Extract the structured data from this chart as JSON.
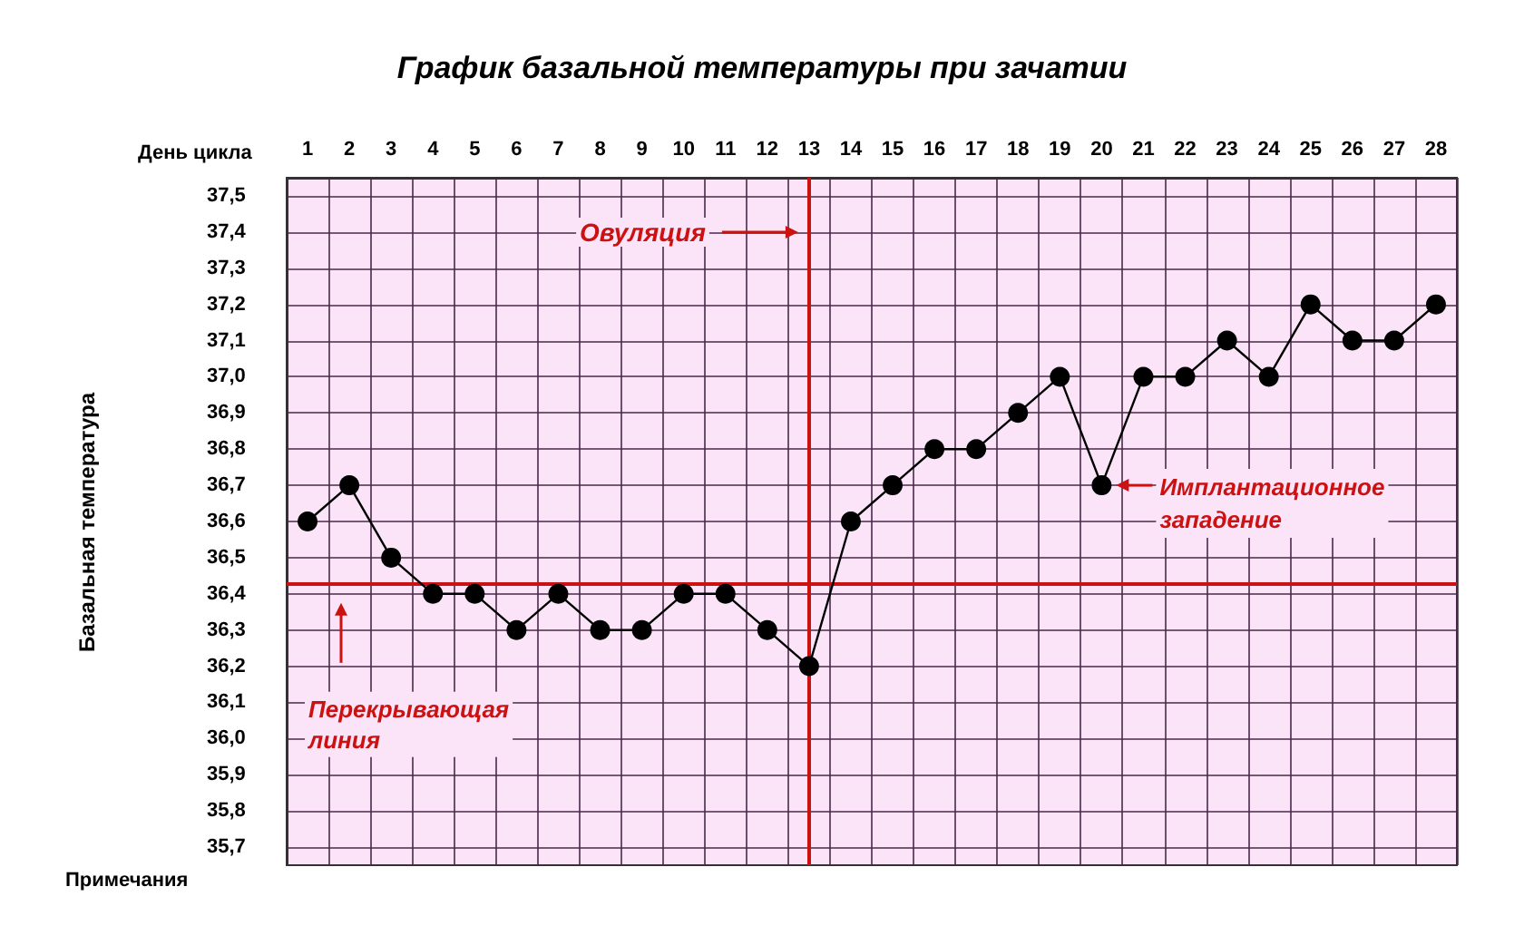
{
  "chart_data": {
    "type": "line",
    "title": "График базальной температуры при зачатии",
    "xlabel": "День цикла",
    "ylabel": "Базальная температура",
    "x": [
      1,
      2,
      3,
      4,
      5,
      6,
      7,
      8,
      9,
      10,
      11,
      12,
      13,
      14,
      15,
      16,
      17,
      18,
      19,
      20,
      21,
      22,
      23,
      24,
      25,
      26,
      27,
      28
    ],
    "series": [
      {
        "color": "#000000",
        "values": [
          36.6,
          36.7,
          36.5,
          36.4,
          36.4,
          36.3,
          36.4,
          36.3,
          36.3,
          36.4,
          36.4,
          36.3,
          36.2,
          36.6,
          36.7,
          36.8,
          36.8,
          36.9,
          37.0,
          36.7,
          37.0,
          37.0,
          37.1,
          37.0,
          37.2,
          37.1,
          37.1,
          37.2
        ]
      }
    ],
    "xlim": [
      0.5,
      28.5
    ],
    "xticks": [
      {
        "value": 0.5,
        "label": null
      },
      1,
      {
        "value": 1.5,
        "label": null
      },
      2,
      {
        "value": 2.5,
        "label": null
      },
      3,
      {
        "value": 3.5,
        "label": null
      },
      4,
      {
        "value": 4.5,
        "label": null
      },
      5,
      {
        "value": 5.5,
        "label": null
      },
      6,
      {
        "value": 6.5,
        "label": null
      },
      7,
      {
        "value": 7.5,
        "label": null
      },
      8,
      {
        "value": 8.5,
        "label": null
      },
      9,
      {
        "value": 9.5,
        "label": null
      },
      10,
      {
        "value": 10.5,
        "label": null
      },
      11,
      {
        "value": 11.5,
        "label": null
      },
      12,
      {
        "value": 12.5,
        "label": null
      },
      13,
      {
        "value": 13.5,
        "label": null
      },
      14,
      {
        "value": 14.5,
        "label": null
      },
      15,
      {
        "value": 15.5,
        "label": null
      },
      16,
      {
        "value": 16.5,
        "label": null
      },
      17,
      {
        "value": 17.5,
        "label": null
      },
      18,
      {
        "value": 18.5,
        "label": null
      },
      19,
      {
        "value": 19.5,
        "label": null
      },
      20,
      {
        "value": 20.5,
        "label": null
      },
      21,
      {
        "value": 21.5,
        "label": null
      },
      22,
      {
        "value": 22.5,
        "label": null
      },
      23,
      {
        "value": 23.5,
        "label": null
      },
      24,
      {
        "value": 24.5,
        "label": null
      },
      25,
      {
        "value": 25.5,
        "label": null
      },
      26,
      {
        "value": 26.5,
        "label": null
      },
      27,
      {
        "value": 27.5,
        "label": null
      },
      28,
      {
        "value": 28.5,
        "label": null
      }
    ],
    "ylim": [
      35.65,
      37.55
    ],
    "yticks": [
      {
        "value": 35.7,
        "label": "35,7"
      },
      {
        "value": 35.8,
        "label": "35,8"
      },
      {
        "value": 35.9,
        "label": "35,9"
      },
      {
        "value": 36.0,
        "label": "36,0"
      },
      {
        "value": 36.1,
        "label": "36,1"
      },
      {
        "value": 36.2,
        "label": "36,2"
      },
      {
        "value": 36.3,
        "label": "36,3"
      },
      {
        "value": 36.4,
        "label": "36,4"
      },
      {
        "value": 36.5,
        "label": "36,5"
      },
      {
        "value": 36.6,
        "label": "36,6"
      },
      {
        "value": 36.7,
        "label": "36,7"
      },
      {
        "value": 36.8,
        "label": "36,8"
      },
      {
        "value": 36.9,
        "label": "36,9"
      },
      {
        "value": 37.0,
        "label": "37,0"
      },
      {
        "value": 37.1,
        "label": "37,1"
      },
      {
        "value": 37.2,
        "label": "37,2"
      },
      {
        "value": 37.3,
        "label": "37,3"
      },
      {
        "value": 37.4,
        "label": "37,4"
      },
      {
        "value": 37.5,
        "label": "37,5"
      }
    ],
    "ref_lines": [
      {
        "axis": "x",
        "value": 13,
        "label": "Овуляция",
        "color": "#cc1111"
      },
      {
        "axis": "y",
        "value": 36.43,
        "label": "Перекрывающая линия",
        "color": "#cc1111"
      }
    ],
    "annotations": [
      {
        "text": "Имплантационное западение",
        "x": 20,
        "y": 36.7
      },
      "Примечания"
    ],
    "grid": true,
    "marker": "circle",
    "line_style": "solid"
  }
}
